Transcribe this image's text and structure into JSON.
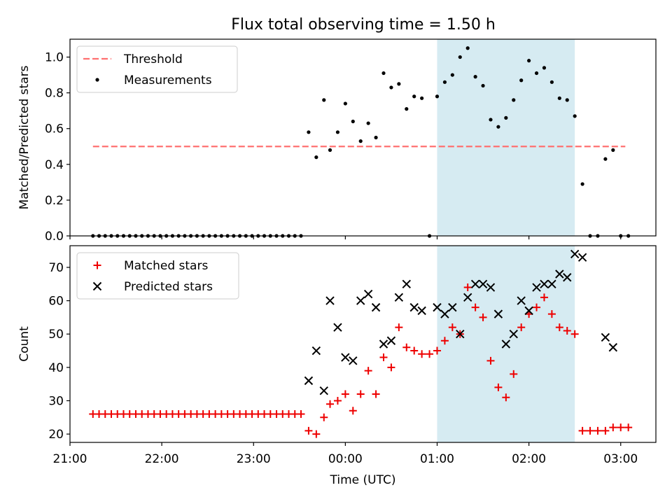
{
  "title": "Flux total observing time = 1.50 h",
  "colors": {
    "threshold": "#ff7070",
    "measurements": "#000000",
    "matched": "#ee0000",
    "predicted": "#000000",
    "shade_fill": "#add8e6",
    "shade_alpha": 0.5
  },
  "chart_data": [
    {
      "type": "scatter",
      "ylabel": "Matched/Predicted stars",
      "ylim": [
        0,
        1.1
      ],
      "yticks": [
        0.0,
        0.2,
        0.4,
        0.6,
        0.8,
        1.0
      ],
      "ytick_labels": [
        "0.0",
        "0.2",
        "0.4",
        "0.6",
        "0.8",
        "1.0"
      ],
      "xlim": [
        "21:00",
        "03:23"
      ],
      "legend_position": "top-left",
      "shaded_interval": [
        "01:00",
        "02:30"
      ],
      "threshold": {
        "name": "Threshold",
        "y": 0.5,
        "x_range": [
          "21:15",
          "03:03"
        ]
      },
      "series": [
        {
          "name": "Measurements",
          "marker": "dot",
          "x": [
            "21:15",
            "21:19",
            "21:23",
            "21:27",
            "21:31",
            "21:35",
            "21:39",
            "21:43",
            "21:47",
            "21:51",
            "21:55",
            "21:59",
            "22:03",
            "22:07",
            "22:11",
            "22:15",
            "22:19",
            "22:23",
            "22:27",
            "22:31",
            "22:35",
            "22:39",
            "22:43",
            "22:47",
            "22:51",
            "22:55",
            "22:59",
            "23:03",
            "23:07",
            "23:11",
            "23:15",
            "23:19",
            "23:23",
            "23:27",
            "23:31",
            "23:36",
            "23:41",
            "23:46",
            "23:50",
            "23:55",
            "00:00",
            "00:05",
            "00:10",
            "00:15",
            "00:20",
            "00:25",
            "00:30",
            "00:35",
            "00:40",
            "00:45",
            "00:50",
            "00:55",
            "01:00",
            "01:05",
            "01:10",
            "01:15",
            "01:20",
            "01:25",
            "01:30",
            "01:35",
            "01:40",
            "01:45",
            "01:50",
            "01:55",
            "02:00",
            "02:05",
            "02:10",
            "02:15",
            "02:20",
            "02:25",
            "02:30",
            "02:35",
            "02:40",
            "02:45",
            "02:50",
            "02:55",
            "03:00",
            "03:05"
          ],
          "y": [
            0,
            0,
            0,
            0,
            0,
            0,
            0,
            0,
            0,
            0,
            0,
            0,
            0,
            0,
            0,
            0,
            0,
            0,
            0,
            0,
            0,
            0,
            0,
            0,
            0,
            0,
            0,
            0,
            0,
            0,
            0,
            0,
            0,
            0,
            0,
            0.58,
            0.44,
            0.76,
            0.48,
            0.58,
            0.74,
            0.64,
            0.53,
            0.63,
            0.55,
            0.91,
            0.83,
            0.85,
            0.71,
            0.78,
            0.77,
            0.0,
            0.78,
            0.86,
            0.9,
            1.0,
            1.05,
            0.89,
            0.84,
            0.65,
            0.61,
            0.66,
            0.76,
            0.87,
            0.98,
            0.91,
            0.94,
            0.86,
            0.77,
            0.76,
            0.67,
            0.29,
            0.0,
            0.0,
            0.43,
            0.48,
            0.0,
            0.0
          ]
        }
      ]
    },
    {
      "type": "scatter",
      "ylabel": "Count",
      "xlabel": "Time (UTC)",
      "ylim": [
        17.5,
        76.5
      ],
      "yticks": [
        20,
        30,
        40,
        50,
        60,
        70
      ],
      "ytick_labels": [
        "20",
        "30",
        "40",
        "50",
        "60",
        "70"
      ],
      "xlim": [
        "21:00",
        "03:23"
      ],
      "xtick_labels": [
        "21:00",
        "22:00",
        "23:00",
        "00:00",
        "01:00",
        "02:00",
        "03:00"
      ],
      "legend_position": "top-left",
      "shaded_interval": [
        "01:00",
        "02:30"
      ],
      "series": [
        {
          "name": "Matched stars",
          "marker": "plus",
          "x": [
            "21:15",
            "21:19",
            "21:23",
            "21:27",
            "21:31",
            "21:35",
            "21:39",
            "21:43",
            "21:47",
            "21:51",
            "21:55",
            "21:59",
            "22:03",
            "22:07",
            "22:11",
            "22:15",
            "22:19",
            "22:23",
            "22:27",
            "22:31",
            "22:35",
            "22:39",
            "22:43",
            "22:47",
            "22:51",
            "22:55",
            "22:59",
            "23:03",
            "23:07",
            "23:11",
            "23:15",
            "23:19",
            "23:23",
            "23:27",
            "23:31",
            "23:36",
            "23:41",
            "23:46",
            "23:50",
            "23:55",
            "00:00",
            "00:05",
            "00:10",
            "00:15",
            "00:20",
            "00:25",
            "00:30",
            "00:35",
            "00:40",
            "00:45",
            "00:50",
            "00:55",
            "01:00",
            "01:05",
            "01:10",
            "01:15",
            "01:20",
            "01:25",
            "01:30",
            "01:35",
            "01:40",
            "01:45",
            "01:50",
            "01:55",
            "02:00",
            "02:05",
            "02:10",
            "02:15",
            "02:20",
            "02:25",
            "02:30",
            "02:35",
            "02:40",
            "02:45",
            "02:50",
            "02:55",
            "03:00",
            "03:05"
          ],
          "y": [
            26,
            26,
            26,
            26,
            26,
            26,
            26,
            26,
            26,
            26,
            26,
            26,
            26,
            26,
            26,
            26,
            26,
            26,
            26,
            26,
            26,
            26,
            26,
            26,
            26,
            26,
            26,
            26,
            26,
            26,
            26,
            26,
            26,
            26,
            26,
            21,
            20,
            25,
            29,
            30,
            32,
            27,
            32,
            39,
            32,
            43,
            40,
            52,
            46,
            45,
            44,
            44,
            45,
            48,
            52,
            50,
            64,
            58,
            55,
            42,
            34,
            31,
            38,
            52,
            56,
            58,
            61,
            56,
            52,
            51,
            50,
            21,
            21,
            21,
            21,
            22,
            22,
            22
          ]
        },
        {
          "name": "Predicted stars",
          "marker": "x",
          "x": [
            "23:36",
            "23:41",
            "23:46",
            "23:50",
            "23:55",
            "00:00",
            "00:05",
            "00:10",
            "00:15",
            "00:20",
            "00:25",
            "00:30",
            "00:35",
            "00:40",
            "00:45",
            "00:50",
            "00:55",
            "01:00",
            "01:05",
            "01:10",
            "01:15",
            "01:20",
            "01:25",
            "01:30",
            "01:35",
            "01:40",
            "01:45",
            "01:50",
            "01:55",
            "02:00",
            "02:05",
            "02:10",
            "02:15",
            "02:20",
            "02:25",
            "02:30",
            "02:35",
            "02:50",
            "02:55"
          ],
          "y": [
            36,
            45,
            33,
            60,
            52,
            43,
            42,
            60,
            62,
            58,
            47,
            48,
            61,
            65,
            58,
            57,
            null,
            58,
            56,
            58,
            50,
            61,
            65,
            65,
            64,
            56,
            47,
            50,
            60,
            57,
            64,
            65,
            65,
            68,
            67,
            74,
            73,
            49,
            46
          ]
        }
      ]
    }
  ]
}
